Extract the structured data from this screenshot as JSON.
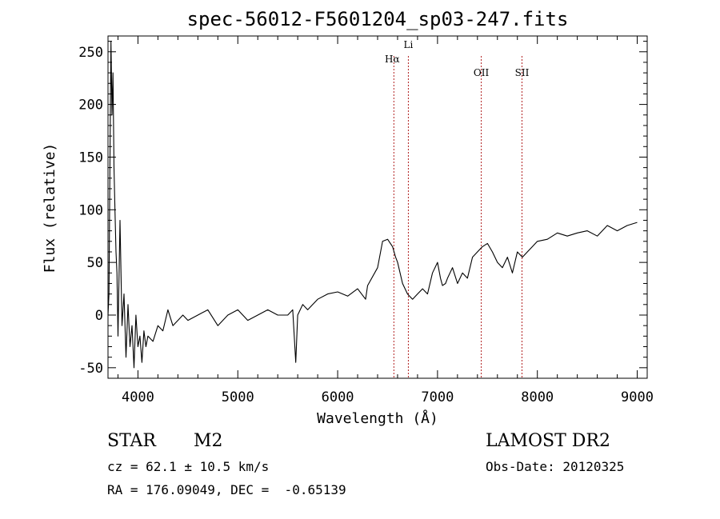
{
  "chart_data": {
    "type": "line",
    "title": "spec-56012-F5601204_sp03-247.fits",
    "xlabel": "Wavelength (Å)",
    "ylabel": "Flux (relative)",
    "xlim": [
      3700,
      9100
    ],
    "ylim": [
      -60,
      265
    ],
    "xticks": [
      4000,
      5000,
      6000,
      7000,
      8000,
      9000
    ],
    "yticks": [
      -50,
      0,
      50,
      100,
      150,
      200,
      250
    ],
    "grid": false,
    "series": [
      {
        "x": [
          3700,
          3710,
          3720,
          3730,
          3740,
          3750,
          3760,
          3770,
          3780,
          3790,
          3800,
          3820,
          3840,
          3860,
          3880,
          3900,
          3920,
          3940,
          3960,
          3980,
          4000,
          4020,
          4040,
          4060,
          4080,
          4100,
          4150,
          4200,
          4250,
          4300,
          4350,
          4400,
          4450,
          4500,
          4600,
          4700,
          4800,
          4900,
          5000,
          5100,
          5200,
          5300,
          5400,
          5500,
          5550,
          5580,
          5600,
          5650,
          5700,
          5800,
          5900,
          6000,
          6100,
          6200,
          6280,
          6300,
          6400,
          6450,
          6500,
          6550,
          6580,
          6600,
          6650,
          6700,
          6750,
          6800,
          6850,
          6900,
          6950,
          7000,
          7030,
          7050,
          7080,
          7100,
          7150,
          7200,
          7250,
          7300,
          7350,
          7400,
          7450,
          7500,
          7550,
          7600,
          7650,
          7700,
          7750,
          7800,
          7850,
          7900,
          7950,
          8000,
          8100,
          8200,
          8300,
          8400,
          8500,
          8600,
          8700,
          8800,
          8900,
          9000
        ],
        "y": [
          0,
          20,
          150,
          260,
          190,
          230,
          140,
          100,
          60,
          40,
          -20,
          90,
          -10,
          20,
          -40,
          10,
          -30,
          -10,
          -50,
          0,
          -30,
          -20,
          -45,
          -15,
          -30,
          -20,
          -25,
          -10,
          -15,
          5,
          -10,
          -5,
          0,
          -5,
          0,
          5,
          -10,
          0,
          5,
          -5,
          0,
          5,
          0,
          0,
          5,
          -45,
          0,
          10,
          5,
          15,
          20,
          22,
          18,
          25,
          15,
          28,
          45,
          70,
          72,
          65,
          55,
          50,
          30,
          20,
          15,
          20,
          25,
          20,
          40,
          50,
          35,
          28,
          30,
          35,
          45,
          30,
          40,
          35,
          55,
          60,
          65,
          68,
          60,
          50,
          45,
          55,
          40,
          60,
          55,
          60,
          65,
          70,
          72,
          78,
          75,
          78,
          80,
          75,
          85,
          80,
          85,
          88
        ]
      }
    ],
    "annotations": [
      {
        "label": "Hα",
        "x": 6563
      },
      {
        "label": "Li",
        "x": 6708
      },
      {
        "label": "OII",
        "x": 7438
      },
      {
        "label": "SII",
        "x": 7846
      }
    ]
  },
  "info": {
    "object_class": "STAR",
    "subclass": "M2",
    "survey": "LAMOST DR2",
    "redshift": "cz = 62.1 ± 10.5 km/s",
    "obs_date": "Obs-Date: 20120325",
    "coords": "RA = 176.09049, DEC =  -0.65139"
  }
}
